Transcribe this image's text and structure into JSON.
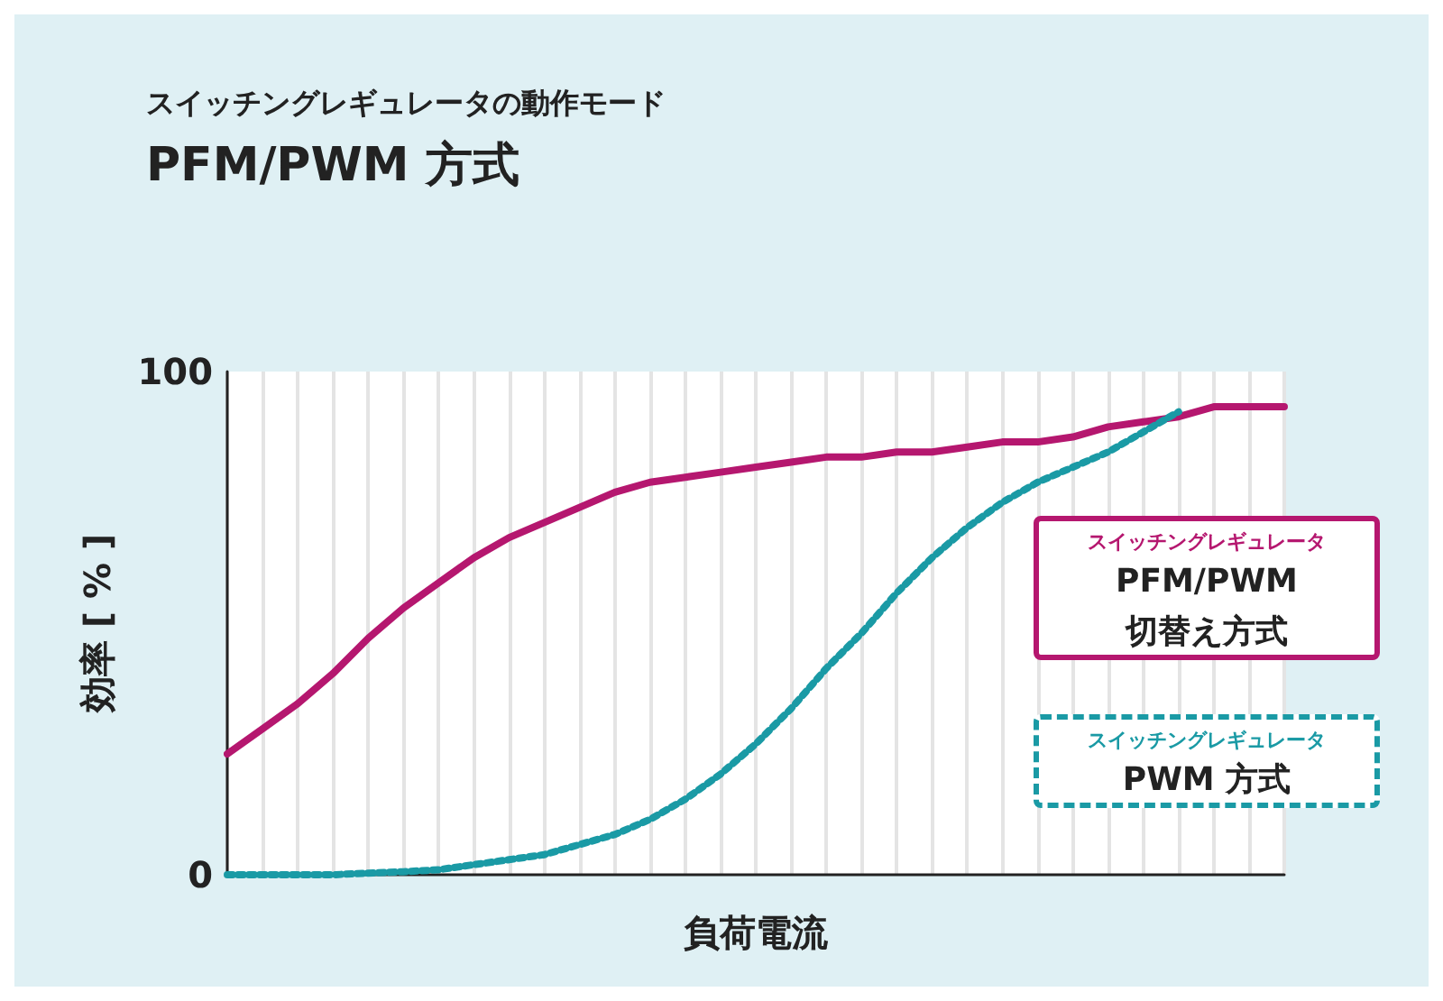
{
  "chart_data": {
    "type": "line",
    "title": "スイッチングレギュレータの動作モード",
    "subtitle": "PFM/PWM 方式",
    "xlabel": "負荷電流",
    "ylabel": "効率 [ % ]",
    "categories": [
      null,
      null,
      null,
      null,
      null,
      null,
      null,
      null,
      null,
      null,
      null,
      null,
      null,
      null,
      null,
      null,
      null,
      null,
      null,
      null,
      null,
      null,
      null,
      null,
      null,
      null,
      null,
      null,
      null,
      null,
      null
    ],
    "series": [
      {
        "name": "スイッチングレギュレータ\nPFM/PWM\n切替え方式",
        "color": "#b5176f",
        "line_style": "solid",
        "values": [
          24,
          29,
          34,
          40,
          47,
          53,
          58,
          63,
          67,
          70,
          73,
          76,
          78,
          79,
          80,
          81,
          82,
          83,
          83,
          84,
          84,
          85,
          86,
          86,
          87,
          89,
          90,
          91,
          93,
          93,
          93
        ]
      },
      {
        "name": "スイッチングレギュレータ\nPWM 方式",
        "color": "#1a9aa5",
        "line_style": "dotted",
        "values": [
          0,
          0,
          0,
          0,
          0.3,
          0.6,
          1,
          2,
          3,
          4,
          6,
          8,
          11,
          15,
          20,
          26,
          33,
          41,
          48,
          56,
          63,
          69,
          74,
          78,
          81,
          84,
          88,
          92,
          null,
          null,
          null
        ]
      }
    ],
    "ylim": [
      0,
      100
    ],
    "yticks": [
      0,
      100
    ],
    "grid": "x",
    "legend": "right",
    "tick_labels": "y",
    "marker": "none"
  }
}
